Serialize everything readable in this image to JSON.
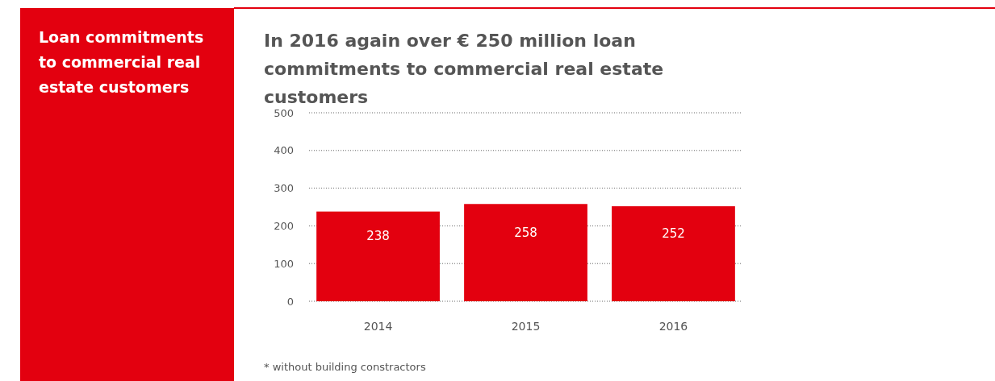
{
  "chart_data": {
    "type": "bar",
    "title": "In 2016 again over € 250 million loan commitments to commercial real estate customers",
    "subtitle": "Loan commitments to commercial real estate customers",
    "annotations": [
      "* without building constractors"
    ],
    "categories": [
      "2014",
      "2015",
      "2016"
    ],
    "values": [
      238,
      258,
      252
    ],
    "color": "#e3000f",
    "ylim": [
      0,
      500
    ],
    "yticks": [
      0,
      100,
      200,
      300,
      400,
      500
    ],
    "grid": "y",
    "data_labels": true
  }
}
